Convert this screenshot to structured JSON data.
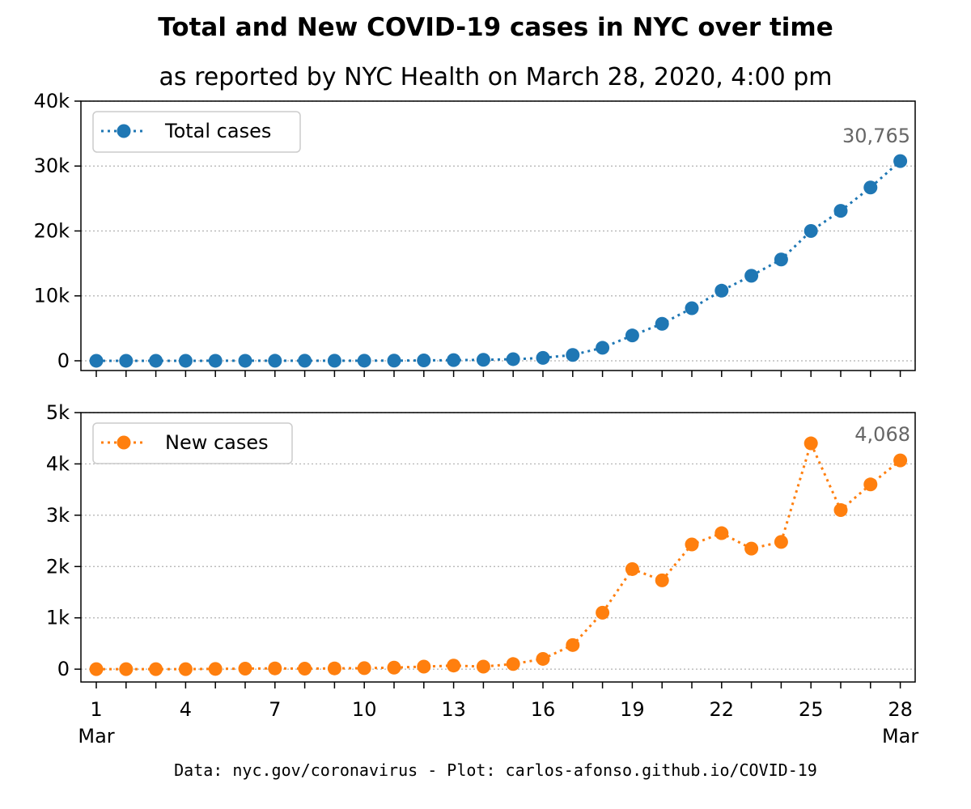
{
  "title": "Total and New COVID-19 cases in NYC over time",
  "subtitle": "as reported by NYC Health on March 28, 2020, 4:00 pm",
  "footer": "Data: nyc.gov/coronavirus - Plot: carlos-afonso.github.io/COVID-19",
  "colors": {
    "total": "#1f77b4",
    "new": "#ff7f0e",
    "grid": "#b0b0b0",
    "annotation": "#666666"
  },
  "chart_data": [
    {
      "type": "line",
      "x": [
        1,
        2,
        3,
        4,
        5,
        6,
        7,
        8,
        9,
        10,
        11,
        12,
        13,
        14,
        15,
        16,
        17,
        18,
        19,
        20,
        21,
        22,
        23,
        24,
        25,
        26,
        27,
        28
      ],
      "series": [
        {
          "name": "Total cases",
          "values": [
            1,
            1,
            1,
            1,
            2,
            3,
            5,
            7,
            10,
            17,
            25,
            55,
            100,
            150,
            250,
            450,
            900,
            2000,
            3900,
            5700,
            8100,
            10800,
            13100,
            15600,
            20000,
            23100,
            26700,
            30765
          ]
        }
      ],
      "ylim": [
        -1500,
        40000
      ],
      "yticks": [
        0,
        10000,
        20000,
        30000,
        40000
      ],
      "ytick_labels": [
        "0",
        "10k",
        "20k",
        "30k",
        "40k"
      ],
      "annotation": "30,765",
      "grid": "y dotted",
      "legend": "upper-left"
    },
    {
      "type": "line",
      "x": [
        1,
        2,
        3,
        4,
        5,
        6,
        7,
        8,
        9,
        10,
        11,
        12,
        13,
        14,
        15,
        16,
        17,
        18,
        19,
        20,
        21,
        22,
        23,
        24,
        25,
        26,
        27,
        28
      ],
      "series": [
        {
          "name": "New cases",
          "values": [
            0,
            0,
            0,
            0,
            5,
            10,
            15,
            10,
            15,
            20,
            30,
            50,
            70,
            50,
            100,
            200,
            470,
            1100,
            1950,
            1730,
            2430,
            2650,
            2350,
            2480,
            4400,
            3100,
            3600,
            4068
          ]
        }
      ],
      "ylim": [
        -250,
        5000
      ],
      "yticks": [
        0,
        1000,
        2000,
        3000,
        4000,
        5000
      ],
      "ytick_labels": [
        "0",
        "1k",
        "2k",
        "3k",
        "4k",
        "5k"
      ],
      "annotation": "4,068",
      "grid": "y dotted",
      "legend": "upper-left",
      "xtick_labels": [
        "1\nMar",
        "4",
        "7",
        "10",
        "13",
        "16",
        "19",
        "22",
        "25",
        "28\nMar"
      ]
    }
  ]
}
